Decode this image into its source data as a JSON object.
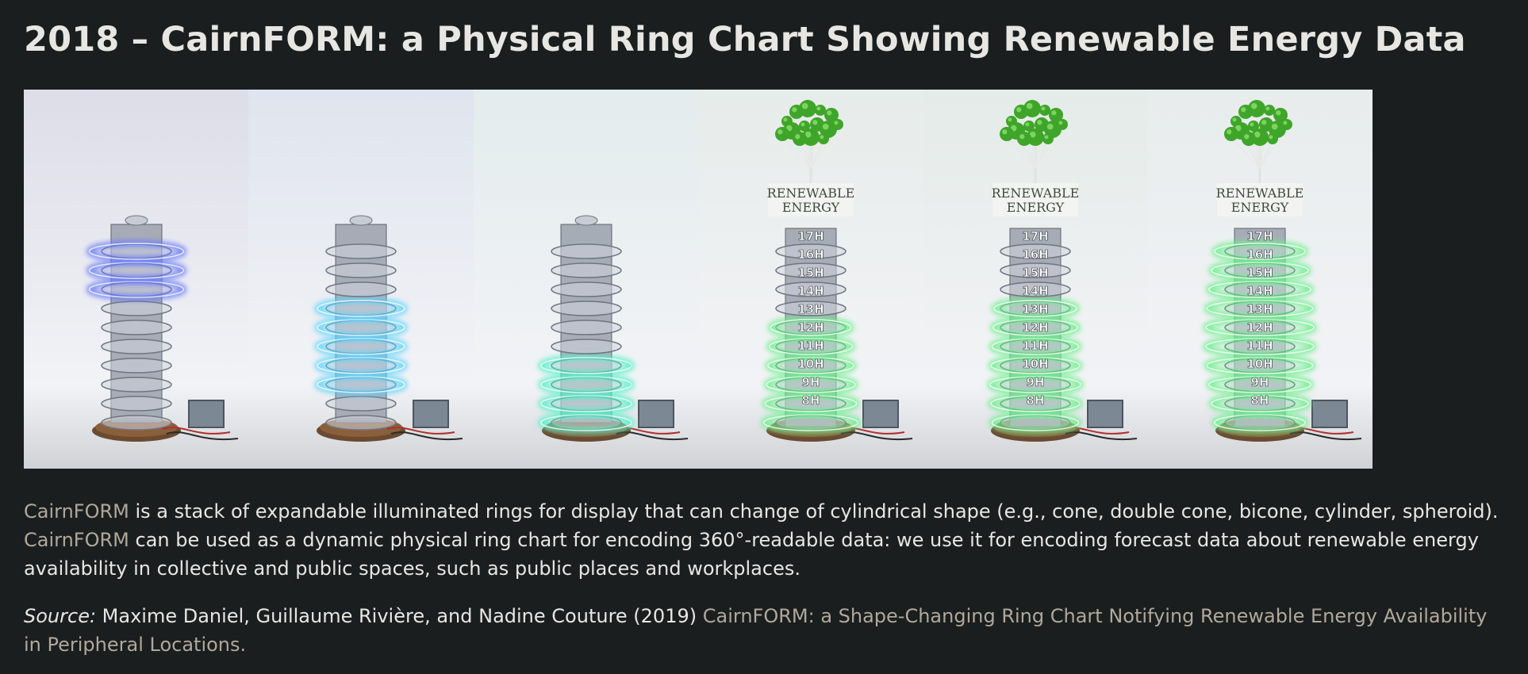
{
  "title": "2018 – CairnFORM: a Physical Ring Chart Showing Renewable Energy Data",
  "figure": {
    "panels": [
      {
        "glow": "#6a7cff",
        "labeled": false,
        "rings": "top",
        "bg": "#dcdde8"
      },
      {
        "glow": "#5fd4ff",
        "labeled": false,
        "rings": "middle",
        "bg": "#dfe4ee"
      },
      {
        "glow": "#54f0c8",
        "labeled": false,
        "rings": "bottom",
        "bg": "#e3ecec"
      },
      {
        "glow": "#6cf08c",
        "labeled": true,
        "rings": "bottom-wide",
        "bg": "#e6ecea"
      },
      {
        "glow": "#6cf08c",
        "labeled": true,
        "rings": "lower",
        "bg": "#e4ebe8"
      },
      {
        "glow": "#6cf08c",
        "labeled": true,
        "rings": "all",
        "bg": "#e7ecec"
      }
    ],
    "sign_line1": "RENEWABLE",
    "sign_line2": "ENERGY",
    "hour_labels": [
      "17H",
      "16H",
      "15H",
      "14H",
      "13H",
      "12H",
      "11H",
      "10H",
      "9H",
      "8H"
    ]
  },
  "description": {
    "link1": "CairnFORM",
    "text1": " is a stack of expandable illuminated rings for display that can change of cylindrical shape (e.g., cone, double cone, bicone, cylinder, spheroid). ",
    "link2": "CairnFORM",
    "text2": " can be used as a dynamic physical ring chart for encoding 360°-readable data: we use it for encoding forecast data about renewable energy availability in collective and public spaces, such as public places and workplaces."
  },
  "source": {
    "label": "Source:",
    "authors": " Maxime Daniel, Guillaume Rivière, and Nadine Couture (2019) ",
    "link": "CairnFORM: a Shape-Changing Ring Chart Notifying Renewable Energy Availability in Peripheral Locations."
  },
  "colors": {
    "background": "#1b1e1f",
    "text": "#e8e6e3",
    "link": "#b0a89c"
  }
}
